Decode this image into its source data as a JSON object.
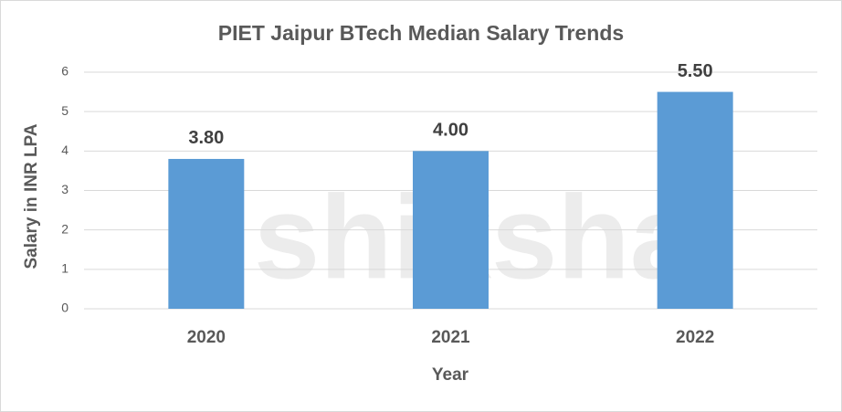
{
  "chart_data": {
    "type": "bar",
    "title": "PIET Jaipur BTech Median Salary Trends",
    "watermark": "shiksha",
    "x_label": "Year",
    "y_label": "Salary in INR LPA",
    "categories": [
      "2020",
      "2021",
      "2022"
    ],
    "values": [
      3.8,
      4.0,
      5.5
    ],
    "value_labels": [
      "3.80",
      "4.00",
      "5.50"
    ],
    "color": "#5b9bd5",
    "ylim": [
      0,
      6
    ],
    "yticks": [
      0,
      1,
      2,
      3,
      4,
      5,
      6
    ],
    "grid": true
  }
}
